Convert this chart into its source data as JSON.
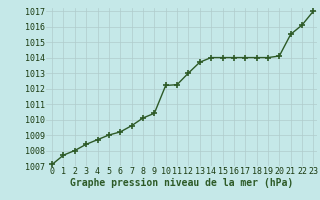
{
  "x": [
    0,
    1,
    2,
    3,
    4,
    5,
    6,
    7,
    8,
    9,
    10,
    11,
    12,
    13,
    14,
    15,
    16,
    17,
    18,
    19,
    20,
    21,
    22,
    23
  ],
  "y": [
    1007.1,
    1007.7,
    1008.0,
    1008.4,
    1008.7,
    1009.0,
    1009.2,
    1009.6,
    1010.1,
    1010.4,
    1012.2,
    1012.25,
    1013.0,
    1013.7,
    1014.0,
    1014.0,
    1014.0,
    1014.0,
    1014.0,
    1014.0,
    1014.1,
    1015.5,
    1016.1,
    1017.0
  ],
  "ylim_min": 1007,
  "ylim_max": 1017,
  "xlim_min": 0,
  "xlim_max": 23,
  "yticks": [
    1007,
    1008,
    1009,
    1010,
    1011,
    1012,
    1013,
    1014,
    1015,
    1016,
    1017
  ],
  "xticks": [
    0,
    1,
    2,
    3,
    4,
    5,
    6,
    7,
    8,
    9,
    10,
    11,
    12,
    13,
    14,
    15,
    16,
    17,
    18,
    19,
    20,
    21,
    22,
    23
  ],
  "line_color": "#2d5a27",
  "marker": "+",
  "marker_size": 4,
  "marker_edge_width": 1.2,
  "bg_color": "#c5e8e8",
  "grid_color": "#b0cccc",
  "xlabel": "Graphe pression niveau de la mer (hPa)",
  "xlabel_color": "#2d5a27",
  "xlabel_fontsize": 7,
  "tick_fontsize": 6,
  "line_width": 1.0
}
